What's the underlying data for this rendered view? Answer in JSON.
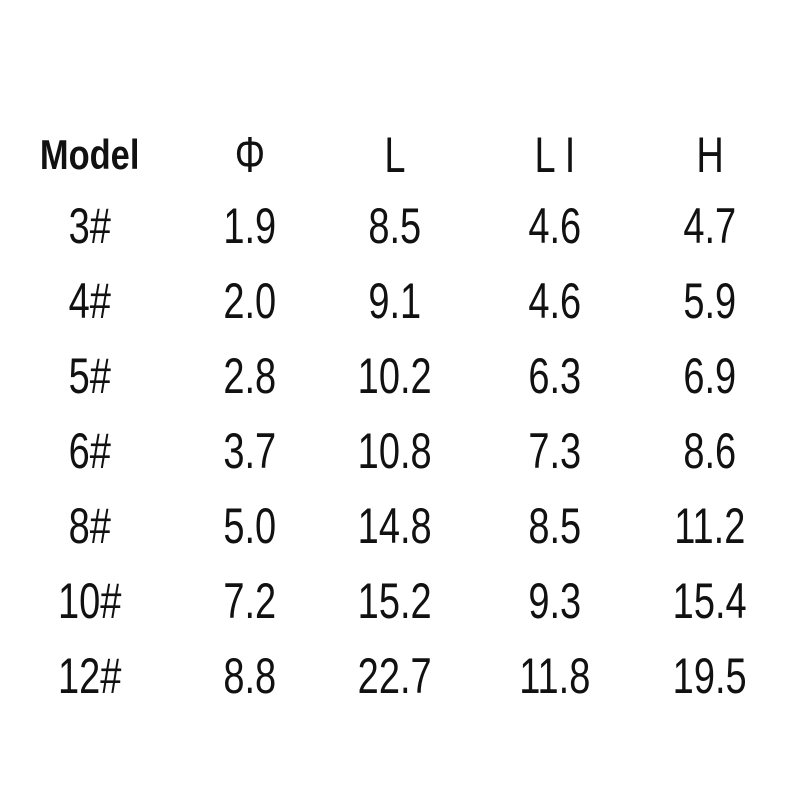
{
  "table": {
    "headers": [
      {
        "key": "model",
        "label": "Model"
      },
      {
        "key": "phi",
        "label": "Φ"
      },
      {
        "key": "l",
        "label": "L"
      },
      {
        "key": "li",
        "label": "L I"
      },
      {
        "key": "h",
        "label": "H"
      }
    ],
    "rows": [
      {
        "model": "3#",
        "phi": "1.9",
        "l": "8.5",
        "li": "4.6",
        "h": "4.7"
      },
      {
        "model": "4#",
        "phi": "2.0",
        "l": "9.1",
        "li": "4.6",
        "h": "5.9"
      },
      {
        "model": "5#",
        "phi": "2.8",
        "l": "10.2",
        "li": "6.3",
        "h": "6.9"
      },
      {
        "model": "6#",
        "phi": "3.7",
        "l": "10.8",
        "li": "7.3",
        "h": "8.6"
      },
      {
        "model": "8#",
        "phi": "5.0",
        "l": "14.8",
        "li": "8.5",
        "h": "11.2"
      },
      {
        "model": "10#",
        "phi": "7.2",
        "l": "15.2",
        "li": "9.3",
        "h": "15.4"
      },
      {
        "model": "12#",
        "phi": "8.8",
        "l": "22.7",
        "li": "11.8",
        "h": "19.5"
      }
    ],
    "text_color": "#111111",
    "background_color": "#ffffff"
  },
  "chart_data": {
    "type": "table",
    "title": "",
    "columns": [
      "Model",
      "Φ",
      "L",
      "L I",
      "H"
    ],
    "rows": [
      [
        "3#",
        1.9,
        8.5,
        4.6,
        4.7
      ],
      [
        "4#",
        2.0,
        9.1,
        4.6,
        5.9
      ],
      [
        "5#",
        2.8,
        10.2,
        6.3,
        6.9
      ],
      [
        "6#",
        3.7,
        10.8,
        7.3,
        8.6
      ],
      [
        "8#",
        5.0,
        14.8,
        8.5,
        11.2
      ],
      [
        "10#",
        7.2,
        15.2,
        9.3,
        15.4
      ],
      [
        "12#",
        8.8,
        22.7,
        11.8,
        19.5
      ]
    ],
    "layout": {
      "grid": false,
      "borders": false,
      "header_bold_first_column_only": true
    }
  }
}
